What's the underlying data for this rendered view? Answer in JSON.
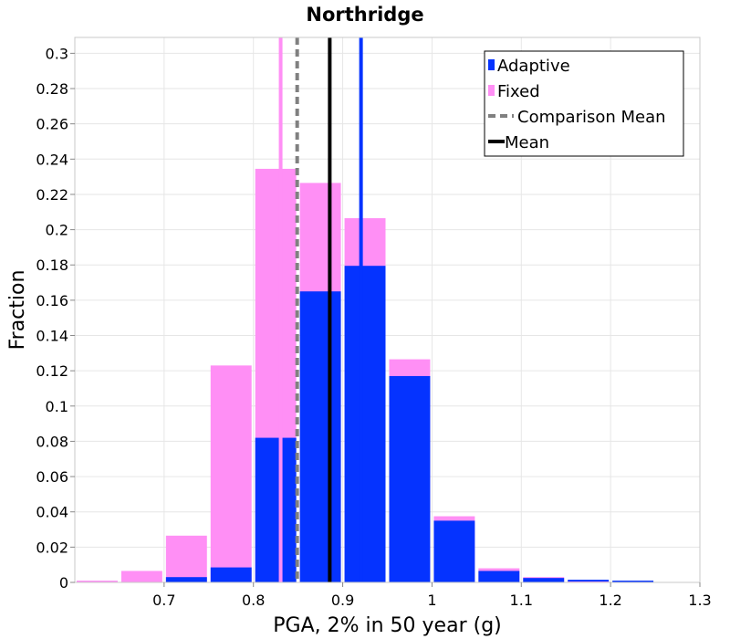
{
  "chart_data": {
    "type": "bar",
    "title": "Northridge",
    "xlabel": "PGA, 2% in 50 year (g)",
    "ylabel": "Fraction",
    "xlim": [
      0.6,
      1.3
    ],
    "ylim": [
      0,
      0.309
    ],
    "x_ticks": [
      "0.7",
      "0.8",
      "0.9",
      "1",
      "1.1",
      "1.2",
      "1.3"
    ],
    "y_ticks": [
      "0",
      "0.02",
      "0.04",
      "0.06",
      "0.08",
      "0.1",
      "0.12",
      "0.14",
      "0.16",
      "0.18",
      "0.2",
      "0.22",
      "0.24",
      "0.26",
      "0.28",
      "0.3"
    ],
    "grid": true,
    "bin_width": 0.05,
    "bin_centers": [
      0.625,
      0.675,
      0.725,
      0.775,
      0.825,
      0.875,
      0.925,
      0.975,
      1.025,
      1.075,
      1.125,
      1.175,
      1.225
    ],
    "series": [
      {
        "name": "Adaptive",
        "color": "#0533ff",
        "values": [
          0.0,
          0.0,
          0.003,
          0.0085,
          0.082,
          0.165,
          0.1795,
          0.117,
          0.035,
          0.0065,
          0.0025,
          0.0015,
          0.001
        ]
      },
      {
        "name": "Fixed",
        "color": "#ff8ff5",
        "values": [
          0.001,
          0.0065,
          0.0265,
          0.123,
          0.2345,
          0.2265,
          0.2065,
          0.1265,
          0.0375,
          0.008,
          0.003,
          0.0005,
          0.0
        ]
      }
    ],
    "mean_lines": [
      {
        "series": "Fixed",
        "x": 0.8305,
        "color": "#ff8ff5",
        "style": "solid"
      },
      {
        "series": "Comparison",
        "x": 0.849,
        "color": "#808080",
        "style": "dashed"
      },
      {
        "series": "Overall",
        "x": 0.8855,
        "color": "#000000",
        "style": "solid"
      },
      {
        "series": "Adaptive",
        "x": 0.9205,
        "color": "#0533ff",
        "style": "solid"
      }
    ],
    "legend": {
      "position": "top-right",
      "entries": [
        {
          "label": "Adaptive",
          "kind": "bar",
          "color": "#0533ff"
        },
        {
          "label": "Fixed",
          "kind": "bar",
          "color": "#ff8ff5"
        },
        {
          "label": "Comparison Mean",
          "kind": "dashed-line",
          "color": "#808080"
        },
        {
          "label": "Mean",
          "kind": "line",
          "color": "#000000"
        }
      ]
    }
  }
}
